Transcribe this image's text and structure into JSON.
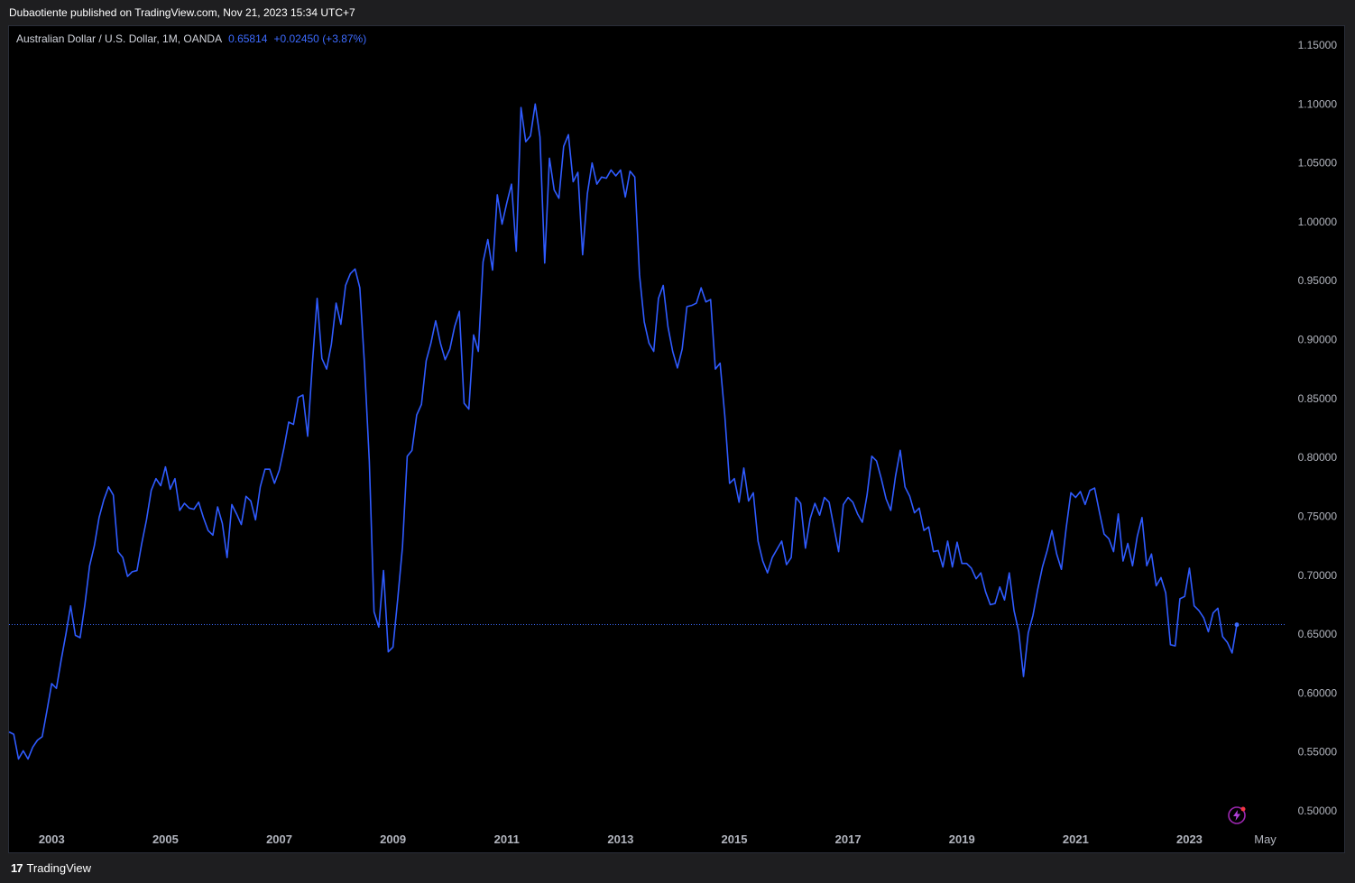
{
  "header": {
    "published_text": "Dubaotiente published on TradingView.com, Nov 21, 2023 15:34 UTC+7"
  },
  "legend": {
    "symbol": "Australian Dollar / U.S. Dollar, 1M, OANDA",
    "price": "0.65814",
    "change": "+0.02450 (+3.87%)"
  },
  "footer": {
    "brand_logo": "17",
    "brand_name": "TradingView"
  },
  "colors": {
    "background": "#000000",
    "line": "#2f5bff",
    "price_line": "#3d6bff",
    "axis_text": "#b2b5be"
  },
  "icons": [
    "tradingview-logo-icon",
    "snapshot-lightning-icon"
  ],
  "chart_data": {
    "type": "line",
    "title": "Australian Dollar / U.S. Dollar, 1M, OANDA",
    "x_ticks": [
      "2003",
      "2005",
      "2007",
      "2009",
      "2011",
      "2013",
      "2015",
      "2017",
      "2019",
      "2021",
      "2023",
      "May"
    ],
    "y_ticks": [
      "1.15000",
      "1.10000",
      "1.05000",
      "1.00000",
      "0.95000",
      "0.90000",
      "0.85000",
      "0.80000",
      "0.75000",
      "0.70000",
      "0.65000",
      "0.60000",
      "0.55000",
      "0.50000"
    ],
    "ylim": [
      0.5,
      1.15
    ],
    "last_value": 0.65814,
    "grid": false,
    "series": [
      {
        "values": [
          0.567,
          0.565,
          0.544,
          0.551,
          0.544,
          0.554,
          0.56,
          0.563,
          0.585,
          0.608,
          0.604,
          0.628,
          0.65,
          0.674,
          0.649,
          0.647,
          0.675,
          0.708,
          0.725,
          0.749,
          0.764,
          0.775,
          0.768,
          0.72,
          0.715,
          0.699,
          0.703,
          0.704,
          0.727,
          0.747,
          0.772,
          0.782,
          0.776,
          0.792,
          0.773,
          0.782,
          0.755,
          0.761,
          0.757,
          0.756,
          0.762,
          0.749,
          0.738,
          0.734,
          0.758,
          0.744,
          0.715,
          0.76,
          0.752,
          0.743,
          0.767,
          0.763,
          0.747,
          0.775,
          0.79,
          0.79,
          0.778,
          0.789,
          0.808,
          0.83,
          0.828,
          0.851,
          0.853,
          0.818,
          0.88,
          0.935,
          0.884,
          0.875,
          0.896,
          0.931,
          0.913,
          0.946,
          0.956,
          0.96,
          0.944,
          0.878,
          0.797,
          0.669,
          0.656,
          0.704,
          0.635,
          0.639,
          0.68,
          0.724,
          0.801,
          0.806,
          0.836,
          0.845,
          0.882,
          0.897,
          0.916,
          0.897,
          0.883,
          0.892,
          0.911,
          0.924,
          0.846,
          0.841,
          0.904,
          0.89,
          0.966,
          0.985,
          0.959,
          1.023,
          0.998,
          1.016,
          1.032,
          0.975,
          1.097,
          1.068,
          1.073,
          1.1,
          1.072,
          0.965,
          1.054,
          1.027,
          1.02,
          1.064,
          1.074,
          1.034,
          1.042,
          0.972,
          1.024,
          1.05,
          1.032,
          1.038,
          1.037,
          1.044,
          1.039,
          1.044,
          1.021,
          1.043,
          1.038,
          0.955,
          0.915,
          0.897,
          0.89,
          0.935,
          0.946,
          0.911,
          0.89,
          0.876,
          0.892,
          0.928,
          0.929,
          0.931,
          0.944,
          0.932,
          0.934,
          0.875,
          0.88,
          0.835,
          0.778,
          0.782,
          0.762,
          0.791,
          0.763,
          0.77,
          0.729,
          0.712,
          0.702,
          0.715,
          0.722,
          0.729,
          0.709,
          0.715,
          0.766,
          0.761,
          0.723,
          0.748,
          0.761,
          0.751,
          0.766,
          0.762,
          0.741,
          0.72,
          0.76,
          0.766,
          0.762,
          0.752,
          0.745,
          0.768,
          0.801,
          0.797,
          0.782,
          0.765,
          0.755,
          0.784,
          0.806,
          0.775,
          0.767,
          0.753,
          0.757,
          0.738,
          0.741,
          0.72,
          0.721,
          0.707,
          0.729,
          0.707,
          0.728,
          0.71,
          0.71,
          0.706,
          0.697,
          0.702,
          0.686,
          0.675,
          0.676,
          0.69,
          0.679,
          0.702,
          0.67,
          0.652,
          0.614,
          0.651,
          0.666,
          0.688,
          0.707,
          0.721,
          0.738,
          0.718,
          0.705,
          0.74,
          0.77,
          0.766,
          0.771,
          0.76,
          0.772,
          0.774,
          0.754,
          0.735,
          0.731,
          0.72,
          0.752,
          0.712,
          0.727,
          0.708,
          0.733,
          0.749,
          0.708,
          0.718,
          0.691,
          0.698,
          0.685,
          0.641,
          0.64,
          0.68,
          0.682,
          0.706,
          0.674,
          0.67,
          0.664,
          0.652,
          0.668,
          0.672,
          0.648,
          0.643,
          0.634,
          0.658
        ]
      }
    ]
  }
}
